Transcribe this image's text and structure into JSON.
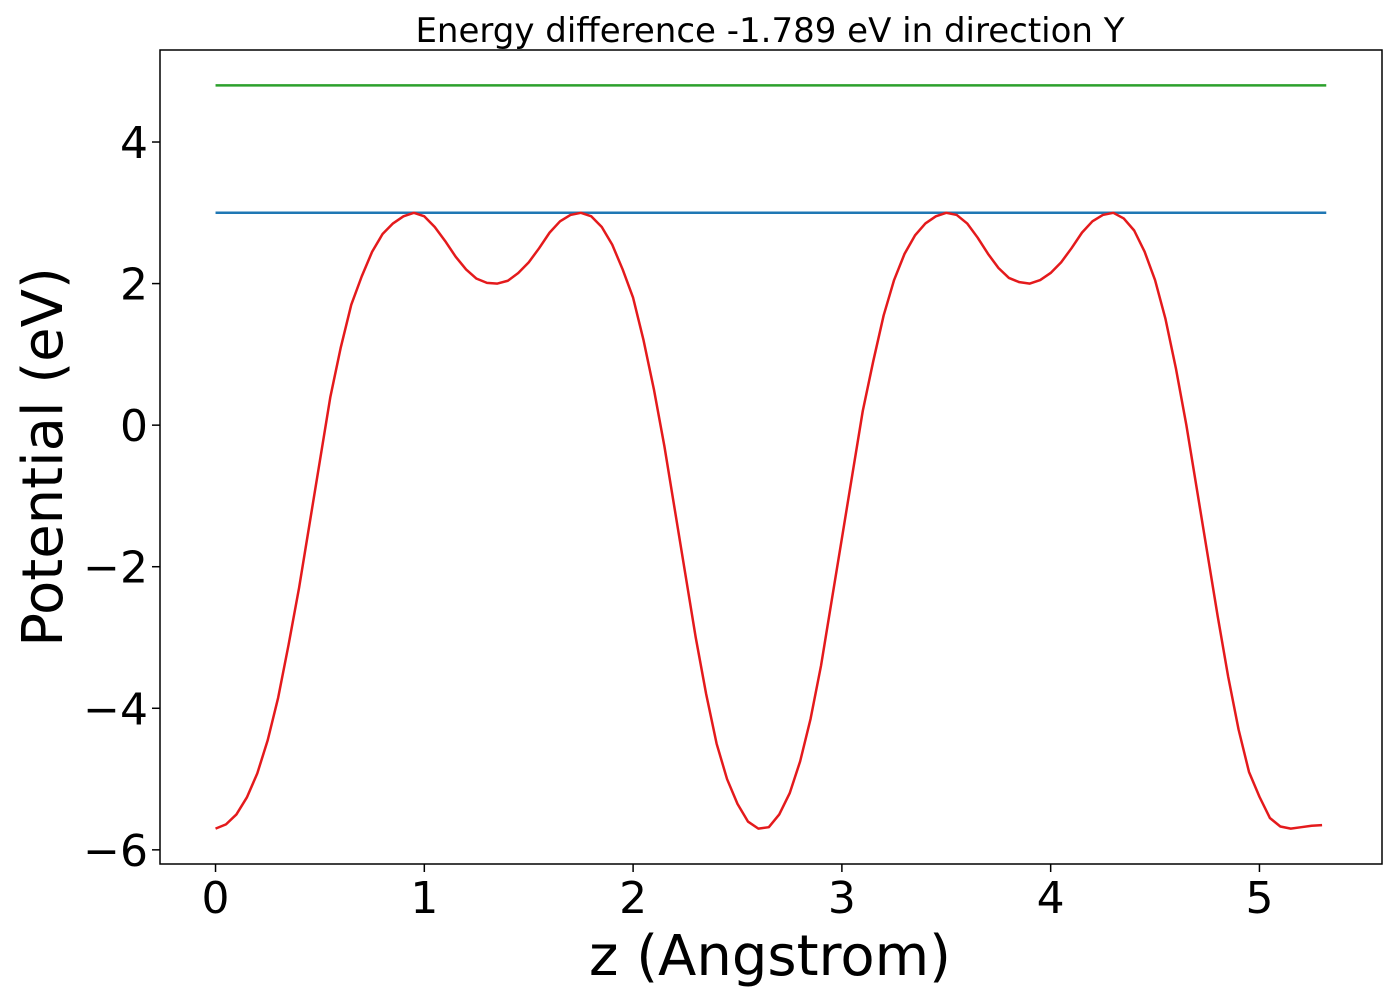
{
  "chart_data": {
    "type": "line",
    "title": "Energy difference -1.789 eV in direction Y",
    "xlabel": "z (Angstrom)",
    "ylabel": "Potential (eV)",
    "xlim": [
      -0.266,
      5.587
    ],
    "ylim": [
      -6.2,
      5.3
    ],
    "xticks": [
      0,
      1,
      2,
      3,
      4,
      5
    ],
    "xtick_labels": [
      "0",
      "1",
      "2",
      "3",
      "4",
      "5"
    ],
    "yticks": [
      -6,
      -4,
      -2,
      0,
      2,
      4
    ],
    "ytick_labels": [
      "−6",
      "−4",
      "−2",
      "0",
      "2",
      "4"
    ],
    "grid": false,
    "series": [
      {
        "color": "#2ca02c",
        "x": [
          0,
          5.32
        ],
        "y": [
          4.8,
          4.8
        ]
      },
      {
        "color": "#1f77b4",
        "x": [
          0,
          5.32
        ],
        "y": [
          3.0,
          3.0
        ]
      },
      {
        "color": "#e41a1c",
        "x": [
          0,
          0.05,
          0.1,
          0.15,
          0.2,
          0.25,
          0.3,
          0.35,
          0.4,
          0.45,
          0.5,
          0.55,
          0.6,
          0.65,
          0.7,
          0.75,
          0.8,
          0.85,
          0.9,
          0.95,
          1.0,
          1.05,
          1.1,
          1.15,
          1.2,
          1.25,
          1.3,
          1.35,
          1.4,
          1.45,
          1.5,
          1.55,
          1.6,
          1.65,
          1.7,
          1.75,
          1.8,
          1.85,
          1.9,
          1.95,
          2.0,
          2.05,
          2.1,
          2.15,
          2.2,
          2.25,
          2.3,
          2.35,
          2.4,
          2.45,
          2.5,
          2.55,
          2.6,
          2.65,
          2.7,
          2.75,
          2.8,
          2.85,
          2.9,
          2.95,
          3.0,
          3.05,
          3.1,
          3.15,
          3.2,
          3.25,
          3.3,
          3.35,
          3.4,
          3.45,
          3.5,
          3.55,
          3.6,
          3.65,
          3.7,
          3.75,
          3.8,
          3.85,
          3.9,
          3.95,
          4.0,
          4.05,
          4.1,
          4.15,
          4.2,
          4.25,
          4.3,
          4.35,
          4.4,
          4.45,
          4.5,
          4.55,
          4.6,
          4.65,
          4.7,
          4.75,
          4.8,
          4.85,
          4.9,
          4.95,
          5.0,
          5.05,
          5.1,
          5.15,
          5.2,
          5.25,
          5.3
        ],
        "y": [
          -5.7,
          -5.64,
          -5.5,
          -5.26,
          -4.92,
          -4.45,
          -3.85,
          -3.1,
          -2.3,
          -1.4,
          -0.5,
          0.4,
          1.1,
          1.7,
          2.1,
          2.45,
          2.7,
          2.85,
          2.95,
          3.0,
          2.95,
          2.8,
          2.6,
          2.38,
          2.2,
          2.07,
          2.01,
          2.0,
          2.04,
          2.15,
          2.3,
          2.5,
          2.72,
          2.88,
          2.97,
          3.0,
          2.95,
          2.8,
          2.55,
          2.2,
          1.8,
          1.2,
          0.5,
          -0.3,
          -1.2,
          -2.1,
          -3.0,
          -3.8,
          -4.5,
          -5.0,
          -5.35,
          -5.6,
          -5.7,
          -5.68,
          -5.5,
          -5.2,
          -4.75,
          -4.15,
          -3.4,
          -2.5,
          -1.6,
          -0.7,
          0.2,
          0.9,
          1.55,
          2.05,
          2.42,
          2.68,
          2.85,
          2.95,
          3.0,
          2.97,
          2.85,
          2.65,
          2.42,
          2.22,
          2.08,
          2.02,
          2.0,
          2.05,
          2.15,
          2.3,
          2.5,
          2.72,
          2.88,
          2.97,
          3.0,
          2.92,
          2.75,
          2.45,
          2.05,
          1.5,
          0.8,
          0.0,
          -0.9,
          -1.8,
          -2.7,
          -3.55,
          -4.3,
          -4.9,
          -5.25,
          -5.55,
          -5.67,
          -5.7,
          -5.68,
          -5.66,
          -5.65
        ]
      }
    ]
  }
}
